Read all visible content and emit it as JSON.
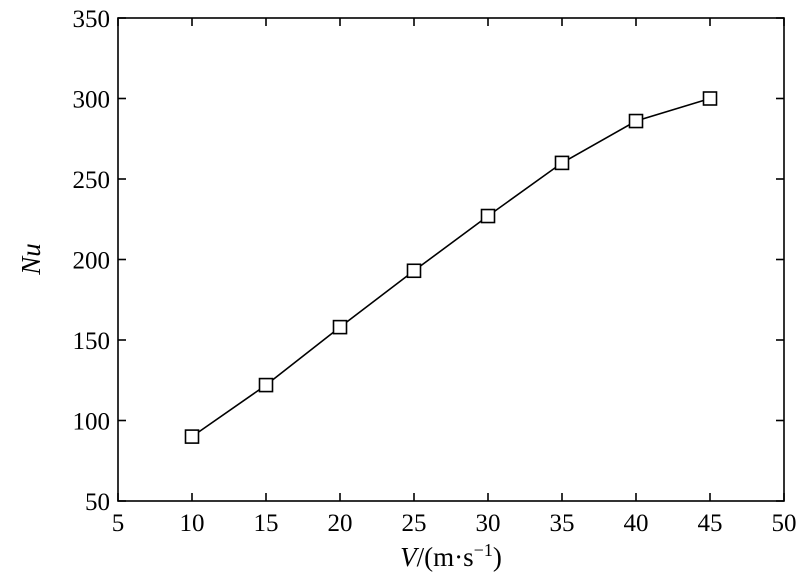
{
  "chart_data": {
    "type": "line",
    "xlabel_main": "V",
    "xlabel_unit": "/(m·s",
    "xlabel_exp": "−1",
    "xlabel_close": ")",
    "ylabel": "Nu",
    "xlim": [
      5,
      50
    ],
    "ylim": [
      50,
      350
    ],
    "xticks": [
      5,
      10,
      15,
      20,
      25,
      30,
      35,
      40,
      45,
      50
    ],
    "yticks": [
      50,
      100,
      150,
      200,
      250,
      300,
      350
    ],
    "grid": false,
    "series": [
      {
        "marker": "open-square",
        "color": "#000000",
        "x": [
          10,
          15,
          20,
          25,
          30,
          35,
          40,
          45
        ],
        "y": [
          90,
          122,
          158,
          193,
          227,
          260,
          286,
          300
        ]
      }
    ]
  }
}
